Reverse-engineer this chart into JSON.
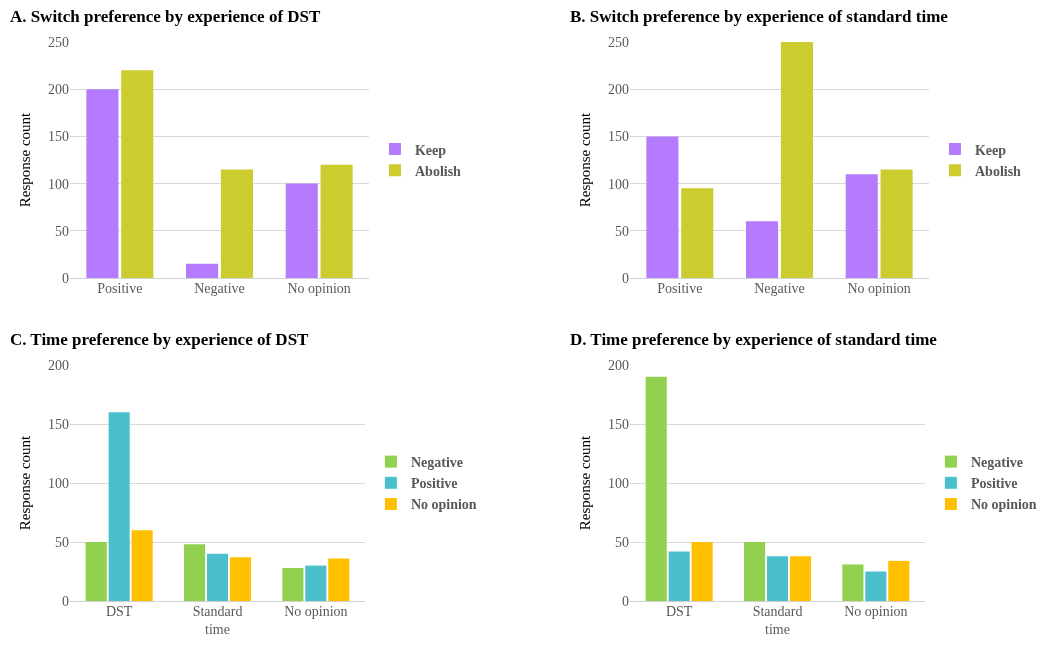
{
  "chart_data": [
    {
      "type": "bar",
      "title": "A. Switch preference by experience of DST",
      "ylabel": "Response count",
      "categories": [
        "Positive",
        "Negative",
        "No opinion"
      ],
      "series": [
        {
          "name": "Keep",
          "color": "#b57bff",
          "values": [
            200,
            15,
            100
          ]
        },
        {
          "name": "Abolish",
          "color": "#cccc2e",
          "values": [
            220,
            115,
            120
          ]
        }
      ],
      "ylim": [
        0,
        250
      ],
      "yticks": [
        0,
        50,
        100,
        150,
        200,
        250
      ],
      "grid": "y",
      "legend": "right"
    },
    {
      "type": "bar",
      "title": "B. Switch preference by experience of standard time",
      "ylabel": "Response count",
      "categories": [
        "Positive",
        "Negative",
        "No opinion"
      ],
      "series": [
        {
          "name": "Keep",
          "color": "#b57bff",
          "values": [
            150,
            60,
            110
          ]
        },
        {
          "name": "Abolish",
          "color": "#cccc2e",
          "values": [
            95,
            250,
            115
          ]
        }
      ],
      "ylim": [
        0,
        250
      ],
      "yticks": [
        0,
        50,
        100,
        150,
        200,
        250
      ],
      "grid": "y",
      "legend": "right"
    },
    {
      "type": "bar",
      "title": "C. Time preference by experience of DST",
      "ylabel": "Response count",
      "categories": [
        "DST",
        "Standard time",
        "No opinion"
      ],
      "series": [
        {
          "name": "Negative",
          "color": "#92d050",
          "values": [
            50,
            48,
            28
          ]
        },
        {
          "name": "Positive",
          "color": "#4bc0cc",
          "values": [
            160,
            40,
            30
          ]
        },
        {
          "name": "No opinion",
          "color": "#ffc000",
          "values": [
            60,
            37,
            36
          ]
        }
      ],
      "ylim": [
        0,
        200
      ],
      "yticks": [
        0,
        50,
        100,
        150,
        200
      ],
      "grid": "y",
      "legend": "right"
    },
    {
      "type": "bar",
      "title": "D. Time preference by experience of standard time",
      "ylabel": "Response count",
      "categories": [
        "DST",
        "Standard time",
        "No opinion"
      ],
      "series": [
        {
          "name": "Negative",
          "color": "#92d050",
          "values": [
            190,
            50,
            31
          ]
        },
        {
          "name": "Positive",
          "color": "#4bc0cc",
          "values": [
            42,
            38,
            25
          ]
        },
        {
          "name": "No opinion",
          "color": "#ffc000",
          "values": [
            50,
            38,
            34
          ]
        }
      ],
      "ylim": [
        0,
        200
      ],
      "yticks": [
        0,
        50,
        100,
        150,
        200
      ],
      "grid": "y",
      "legend": "right"
    }
  ]
}
